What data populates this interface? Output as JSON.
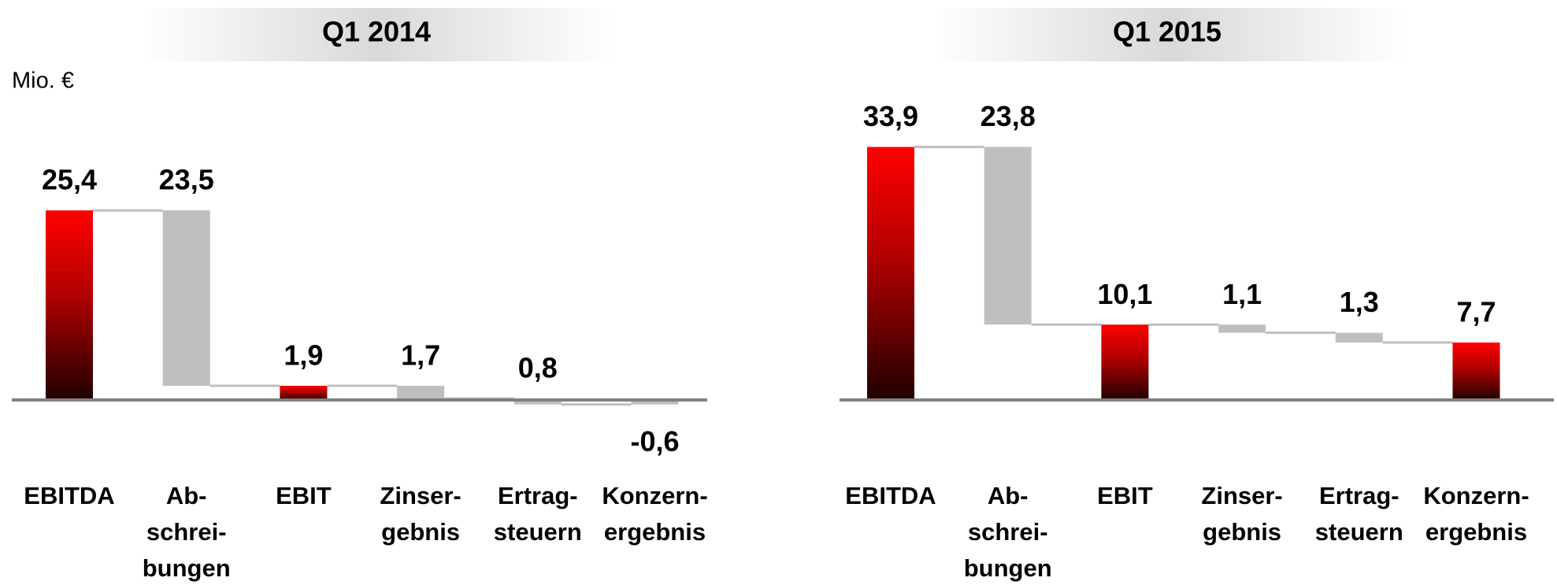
{
  "unit_label": "Mio. €",
  "chart_data": [
    {
      "type": "waterfall",
      "title": "Q1 2014",
      "categories": [
        [
          "EBITDA"
        ],
        [
          "Ab-",
          "schrei-",
          "bungen"
        ],
        [
          "EBIT"
        ],
        [
          "Zinser-",
          "gebnis"
        ],
        [
          "Ertrag-",
          "steuern"
        ],
        [
          "Konzern-",
          "ergebnis"
        ]
      ],
      "measure": [
        "total",
        "decrease",
        "total",
        "decrease",
        "decrease",
        "total"
      ],
      "values": [
        25.4,
        23.5,
        1.9,
        1.7,
        0.8,
        -0.6
      ],
      "value_labels": [
        "25,4",
        "23,5",
        "1,9",
        "1,7",
        "0,8",
        "-0,6"
      ],
      "total_color": "#ff0000",
      "decrease_color": "#bfbfbf"
    },
    {
      "type": "waterfall",
      "title": "Q1 2015",
      "categories": [
        [
          "EBITDA"
        ],
        [
          "Ab-",
          "schrei-",
          "bungen"
        ],
        [
          "EBIT"
        ],
        [
          "Zinser-",
          "gebnis"
        ],
        [
          "Ertrag-",
          "steuern"
        ],
        [
          "Konzern-",
          "ergebnis"
        ]
      ],
      "measure": [
        "total",
        "decrease",
        "total",
        "decrease",
        "decrease",
        "total"
      ],
      "values": [
        33.9,
        23.8,
        10.1,
        1.1,
        1.3,
        7.7
      ],
      "value_labels": [
        "33,9",
        "23,8",
        "10,1",
        "1,1",
        "1,3",
        "7,7"
      ],
      "total_color": "#ff0000",
      "decrease_color": "#bfbfbf"
    }
  ]
}
